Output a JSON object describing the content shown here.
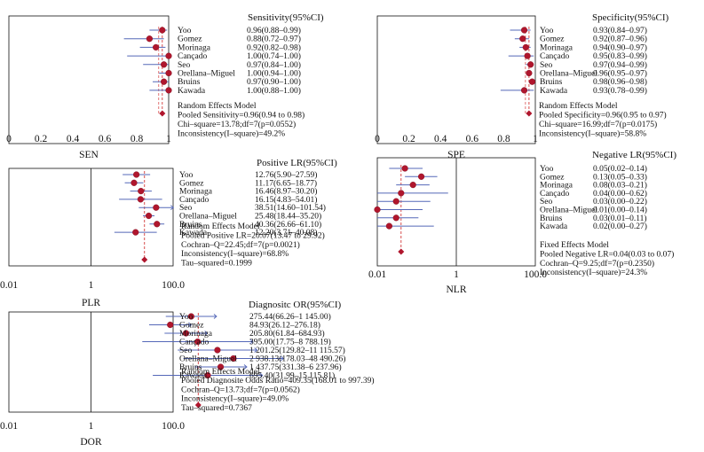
{
  "accent_colors": {
    "marker": "#b0162d",
    "ci_line": "#5568b8",
    "ref_line": "#d43a3a"
  },
  "chart_data": [
    {
      "id": "sen",
      "type": "forest",
      "scale": "linear",
      "xlim": [
        0,
        1
      ],
      "header": "Sensitivity(95%CI)",
      "xlabel": "SEN",
      "ticks": [
        "0",
        "0.2",
        "0.4",
        "0.6",
        "0.8",
        "1"
      ],
      "pooled": 0.96,
      "studies": [
        {
          "name": "Yoo",
          "est": 0.96,
          "lo": 0.88,
          "hi": 0.99,
          "label": "0.96(0.88–0.99)"
        },
        {
          "name": "Gomez",
          "est": 0.88,
          "lo": 0.72,
          "hi": 0.97,
          "label": "0.88(0.72–0.97)"
        },
        {
          "name": "Morinaga",
          "est": 0.92,
          "lo": 0.82,
          "hi": 0.98,
          "label": "0.92(0.82–0.98)"
        },
        {
          "name": "Cançado",
          "est": 1.0,
          "lo": 0.74,
          "hi": 1.0,
          "label": "1.00(0.74–1.00)"
        },
        {
          "name": "Seo",
          "est": 0.97,
          "lo": 0.84,
          "hi": 1.0,
          "label": "0.97(0.84–1.00)"
        },
        {
          "name": "Orellana–Miguel",
          "est": 1.0,
          "lo": 0.94,
          "hi": 1.0,
          "label": "1.00(0.94–1.00)"
        },
        {
          "name": "Bruins",
          "est": 0.97,
          "lo": 0.9,
          "hi": 1.0,
          "label": "0.97(0.90–1.00)"
        },
        {
          "name": "Kawada",
          "est": 1.0,
          "lo": 0.88,
          "hi": 1.0,
          "label": "1.00(0.88–1.00)"
        }
      ],
      "summary": [
        "Random Effects Model",
        "Pooled Sensitivity=0.96(0.94 to 0.98)",
        "Chi–square=13.78;df=7(p=0.0552)",
        "Inconsistency(I–square)=49.2%"
      ]
    },
    {
      "id": "spe",
      "type": "forest",
      "scale": "linear",
      "xlim": [
        0,
        1
      ],
      "header": "Specificity(95%CI)",
      "xlabel": "SPE",
      "ticks": [
        "0",
        "0.2",
        "0.4",
        "0.6",
        "0.8",
        "1"
      ],
      "pooled": 0.96,
      "studies": [
        {
          "name": "Yoo",
          "est": 0.93,
          "lo": 0.84,
          "hi": 0.97,
          "label": "0.93(0.84–0.97)"
        },
        {
          "name": "Gomez",
          "est": 0.92,
          "lo": 0.87,
          "hi": 0.96,
          "label": "0.92(0.87–0.96)"
        },
        {
          "name": "Morinaga",
          "est": 0.94,
          "lo": 0.9,
          "hi": 0.97,
          "label": "0.94(0.90–0.97)"
        },
        {
          "name": "Cançado",
          "est": 0.95,
          "lo": 0.83,
          "hi": 0.99,
          "label": "0.95(0.83–0.99)"
        },
        {
          "name": "Seo",
          "est": 0.97,
          "lo": 0.94,
          "hi": 0.99,
          "label": "0.97(0.94–0.99)"
        },
        {
          "name": "Orellana–Miguel",
          "est": 0.96,
          "lo": 0.95,
          "hi": 0.97,
          "label": "0.96(0.95–0.97)"
        },
        {
          "name": "Bruins",
          "est": 0.98,
          "lo": 0.96,
          "hi": 0.98,
          "label": "0.98(0.96–0.98)"
        },
        {
          "name": "Kawada",
          "est": 0.93,
          "lo": 0.78,
          "hi": 0.99,
          "label": "0.93(0.78–0.99)"
        }
      ],
      "summary": [
        "Random Effects Model",
        "Pooled Specificity=0.96(0.95 to 0.97)",
        "Chi–square=16.99;df=7(p=0.0175)",
        "Inconsistency(I–square)=58.8%"
      ]
    },
    {
      "id": "plr",
      "type": "forest",
      "scale": "log",
      "xlim": [
        0.01,
        100
      ],
      "header": "Positive LR(95%CI)",
      "xlabel": "PLR",
      "ticks": [
        "0.01",
        "1",
        "100.0"
      ],
      "ref": 1,
      "pooled": 20.07,
      "studies": [
        {
          "name": "Yoo",
          "est": 12.76,
          "lo": 5.9,
          "hi": 27.59,
          "label": "12.76(5.90–27.59)"
        },
        {
          "name": "Gomez",
          "est": 11.17,
          "lo": 6.65,
          "hi": 18.77,
          "label": "11.17(6.65–18.77)"
        },
        {
          "name": "Morinaga",
          "est": 16.46,
          "lo": 8.97,
          "hi": 30.2,
          "label": "16.46(8.97–30.20)"
        },
        {
          "name": "Cançado",
          "est": 16.15,
          "lo": 4.83,
          "hi": 54.01,
          "label": "16.15(4.83–54.01)"
        },
        {
          "name": "Seo",
          "est": 38.51,
          "lo": 14.6,
          "hi": 101.54,
          "label": "38.51(14.60–101.54)"
        },
        {
          "name": "Orellana–Miguel",
          "est": 25.48,
          "lo": 18.44,
          "hi": 35.2,
          "label": "25.48(18.44–35.20)"
        },
        {
          "name": "Bruins",
          "est": 40.36,
          "lo": 26.66,
          "hi": 61.1,
          "label": "40.36(26.66–61.10)"
        },
        {
          "name": "Kawada",
          "est": 12.2,
          "lo": 3.71,
          "hi": 40.08,
          "label": "12.20(3.71–40.08)"
        }
      ],
      "summary": [
        "Random Effects Model",
        "Pooled Positive LR=20.07(13.47 to 29.92)",
        "Cochran–Q=22.45;df=7(p=0.0021)",
        "Inconsistency(I–square)=68.8%",
        "Tau–squared=0.1999"
      ]
    },
    {
      "id": "nlr",
      "type": "forest",
      "scale": "log",
      "xlim": [
        0.01,
        100
      ],
      "header": "Negative LR(95%CI)",
      "xlabel": "NLR",
      "ticks": [
        "0.01",
        "1",
        "100.0"
      ],
      "ref": 1,
      "pooled": 0.04,
      "studies": [
        {
          "name": "Yoo",
          "est": 0.05,
          "lo": 0.02,
          "hi": 0.14,
          "label": "0.05(0.02–0.14)"
        },
        {
          "name": "Gomez",
          "est": 0.13,
          "lo": 0.05,
          "hi": 0.33,
          "label": "0.13(0.05–0.33)"
        },
        {
          "name": "Morinaga",
          "est": 0.08,
          "lo": 0.03,
          "hi": 0.21,
          "label": "0.08(0.03–0.21)"
        },
        {
          "name": "Cançado",
          "est": 0.04,
          "lo": 0.0,
          "hi": 0.62,
          "label": "0.04(0.00–0.62)"
        },
        {
          "name": "Seo",
          "est": 0.03,
          "lo": 0.0,
          "hi": 0.22,
          "label": "0.03(0.00–0.22)"
        },
        {
          "name": "Orellana–Miguel",
          "est": 0.01,
          "lo": 0.0,
          "hi": 0.14,
          "label": "0.01(0.00–0.14)"
        },
        {
          "name": "Bruins",
          "est": 0.03,
          "lo": 0.01,
          "hi": 0.11,
          "label": "0.03(0.01–0.11)"
        },
        {
          "name": "Kawada",
          "est": 0.02,
          "lo": 0.0,
          "hi": 0.27,
          "label": "0.02(0.00–0.27)"
        }
      ],
      "summary": [
        "Fixed Effects Model",
        "Pooled Negative LR=0.04(0.03 to 0.07)",
        "Cochran–Q=9.25;df=7(p=0.2350)",
        "Inconsistency(I–square)=24.3%"
      ]
    },
    {
      "id": "dor",
      "type": "forest",
      "scale": "log",
      "xlim": [
        0.01,
        100
      ],
      "header": "Diagnositc OR(95%CI)",
      "xlabel": "DOR",
      "ticks": [
        "0.01",
        "1",
        "100.0"
      ],
      "ref": 1,
      "pooled": 409.35,
      "studies": [
        {
          "name": "Yoo",
          "est": 275.44,
          "lo": 66.26,
          "hi": 1145.0,
          "label": "275.44(66.26–1 145.00)"
        },
        {
          "name": "Gomez",
          "est": 84.93,
          "lo": 26.12,
          "hi": 276.18,
          "label": "84.93(26.12–276.18)"
        },
        {
          "name": "Morinaga",
          "est": 205.8,
          "lo": 61.84,
          "hi": 684.93,
          "label": "205.80(61.84–684.93)"
        },
        {
          "name": "Cançado",
          "est": 395.0,
          "lo": 17.75,
          "hi": 8788.19,
          "label": "395.00(17.75–8 788.19)"
        },
        {
          "name": "Seo",
          "est": 1201.25,
          "lo": 129.82,
          "hi": 11115.57,
          "label": "1 201.25(129.82–11 115.57)"
        },
        {
          "name": "Orellana–Miguel",
          "est": 2938.13,
          "lo": 178.03,
          "hi": 48490.26,
          "label": "2 938.13(178.03–48 490.26)"
        },
        {
          "name": "Bruins",
          "est": 1437.75,
          "lo": 331.38,
          "hi": 6237.96,
          "label": "1 437.75(331.38–6 237.96)"
        },
        {
          "name": "Kawada",
          "est": 695.4,
          "lo": 31.99,
          "hi": 15115.81,
          "label": "695.40(31.99–15 115.81)"
        }
      ],
      "summary": [
        "Random Effects Model",
        "Pooled Diagnosite Odds Ratio=409.35(168.01 to 997.39)",
        "Cochran–Q=13.73;df=7(p=0.0562)",
        "Inconsistency(I–square)=49.0%",
        "Tau–squared=0.7367"
      ]
    }
  ]
}
